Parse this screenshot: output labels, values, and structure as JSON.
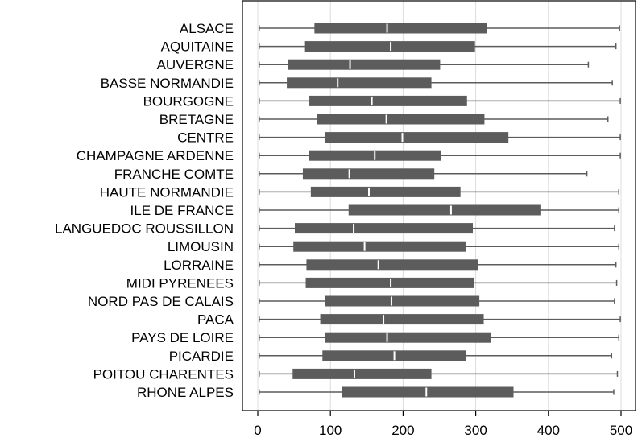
{
  "chart_data": {
    "type": "boxplot",
    "orientation": "horizontal",
    "title": "",
    "xlabel": "",
    "ylabel": "",
    "xlim": [
      0,
      500
    ],
    "xticks": [
      0,
      100,
      200,
      300,
      400,
      500
    ],
    "grid": true,
    "box_color": "#5c5c5c",
    "whisker_color": "#5c5c5c",
    "median_color": "#ffffff",
    "grid_color": "#dcdcdc",
    "categories": [
      {
        "name": "ALSACE",
        "min": 2,
        "q1": 78,
        "median": 178,
        "q3": 315,
        "max": 498
      },
      {
        "name": "AQUITAINE",
        "min": 2,
        "q1": 65,
        "median": 183,
        "q3": 299,
        "max": 493
      },
      {
        "name": "AUVERGNE",
        "min": 2,
        "q1": 42,
        "median": 127,
        "q3": 251,
        "max": 455
      },
      {
        "name": "BASSE NORMANDIE",
        "min": 2,
        "q1": 40,
        "median": 110,
        "q3": 239,
        "max": 488
      },
      {
        "name": "BOURGOGNE",
        "min": 2,
        "q1": 71,
        "median": 157,
        "q3": 288,
        "max": 499
      },
      {
        "name": "BRETAGNE",
        "min": 2,
        "q1": 82,
        "median": 177,
        "q3": 312,
        "max": 482
      },
      {
        "name": "CENTRE",
        "min": 2,
        "q1": 92,
        "median": 199,
        "q3": 345,
        "max": 499
      },
      {
        "name": "CHAMPAGNE ARDENNE",
        "min": 2,
        "q1": 70,
        "median": 161,
        "q3": 252,
        "max": 499
      },
      {
        "name": "FRANCHE COMTE",
        "min": 2,
        "q1": 62,
        "median": 126,
        "q3": 243,
        "max": 453
      },
      {
        "name": "HAUTE NORMANDIE",
        "min": 2,
        "q1": 73,
        "median": 153,
        "q3": 279,
        "max": 497
      },
      {
        "name": "ILE DE FRANCE",
        "min": 2,
        "q1": 125,
        "median": 266,
        "q3": 389,
        "max": 497
      },
      {
        "name": "LANGUEDOC ROUSSILLON",
        "min": 2,
        "q1": 51,
        "median": 132,
        "q3": 296,
        "max": 491
      },
      {
        "name": "LIMOUSIN",
        "min": 2,
        "q1": 49,
        "median": 147,
        "q3": 286,
        "max": 497
      },
      {
        "name": "LORRAINE",
        "min": 2,
        "q1": 67,
        "median": 166,
        "q3": 303,
        "max": 493
      },
      {
        "name": "MIDI PYRENEES",
        "min": 2,
        "q1": 66,
        "median": 183,
        "q3": 298,
        "max": 494
      },
      {
        "name": "NORD PAS DE CALAIS",
        "min": 2,
        "q1": 93,
        "median": 184,
        "q3": 305,
        "max": 491
      },
      {
        "name": "PACA",
        "min": 2,
        "q1": 86,
        "median": 173,
        "q3": 311,
        "max": 499
      },
      {
        "name": "PAYS DE LOIRE",
        "min": 2,
        "q1": 93,
        "median": 178,
        "q3": 321,
        "max": 497
      },
      {
        "name": "PICARDIE",
        "min": 2,
        "q1": 89,
        "median": 188,
        "q3": 287,
        "max": 487
      },
      {
        "name": "POITOU CHARENTES",
        "min": 2,
        "q1": 48,
        "median": 133,
        "q3": 239,
        "max": 495
      },
      {
        "name": "RHONE ALPES",
        "min": 2,
        "q1": 116,
        "median": 232,
        "q3": 352,
        "max": 490
      }
    ]
  }
}
